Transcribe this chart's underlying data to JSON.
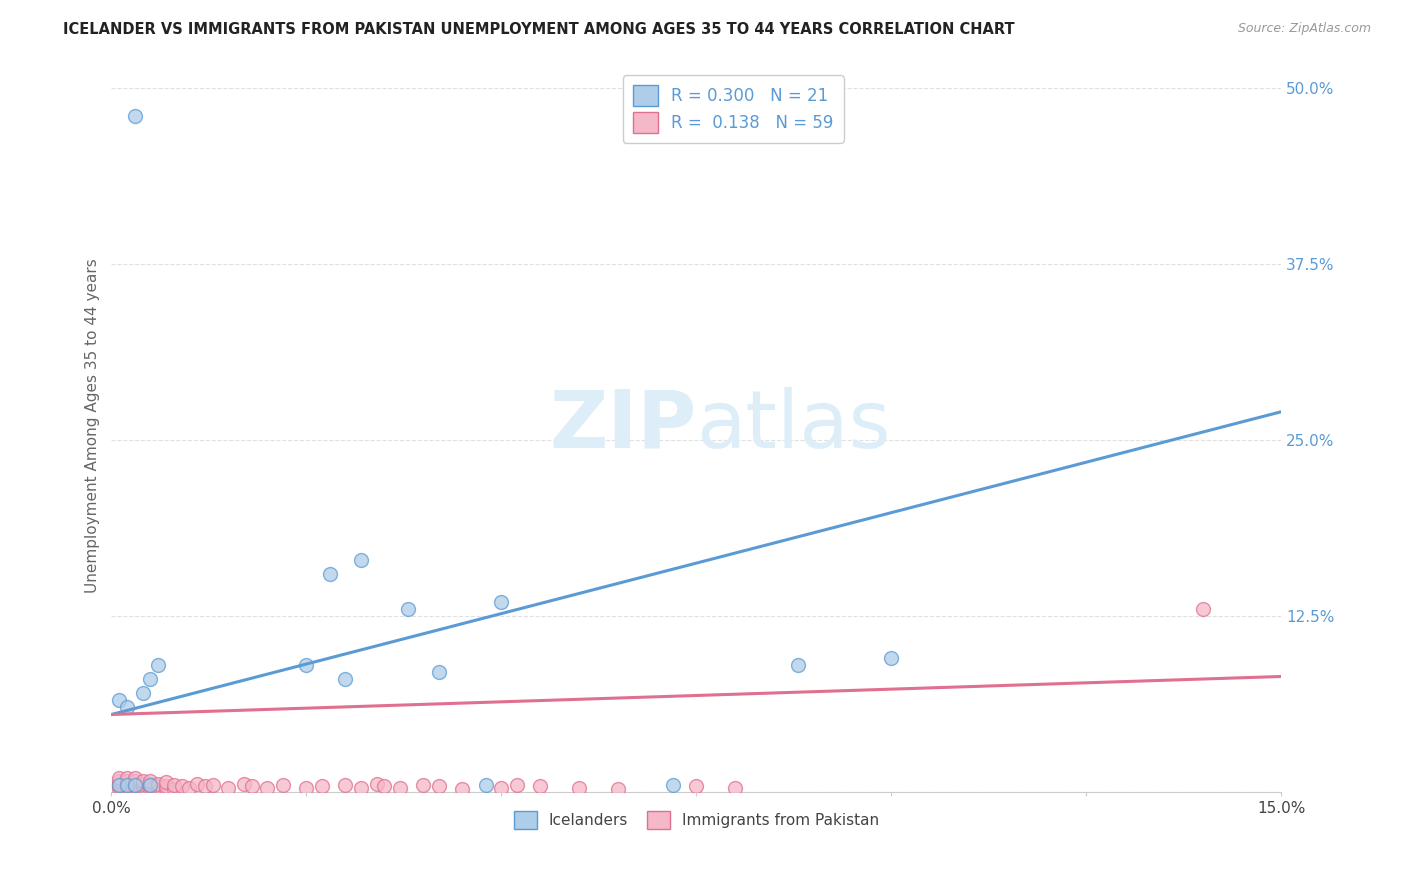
{
  "title": "ICELANDER VS IMMIGRANTS FROM PAKISTAN UNEMPLOYMENT AMONG AGES 35 TO 44 YEARS CORRELATION CHART",
  "source": "Source: ZipAtlas.com",
  "ylabel": "Unemployment Among Ages 35 to 44 years",
  "xlim": [
    0.0,
    0.15
  ],
  "ylim": [
    0.0,
    0.52
  ],
  "xticks": [
    0.0,
    0.025,
    0.05,
    0.075,
    0.1,
    0.125,
    0.15
  ],
  "xticklabels": [
    "0.0%",
    "",
    "",
    "",
    "",
    "",
    "15.0%"
  ],
  "ytick_positions": [
    0.0,
    0.125,
    0.25,
    0.375,
    0.5
  ],
  "ytick_labels": [
    "",
    "12.5%",
    "25.0%",
    "37.5%",
    "50.0%"
  ],
  "color_blue_fill": "#aecde8",
  "color_blue_edge": "#5b9bd5",
  "color_pink_fill": "#f4b8c8",
  "color_pink_edge": "#e07090",
  "color_blue_line": "#5b9bd5",
  "color_pink_line": "#e07090",
  "watermark_color": "#ddeef8",
  "background_color": "#ffffff",
  "grid_color": "#e0e0e0",
  "blue_line_x0": 0.0,
  "blue_line_y0": 0.055,
  "blue_line_x1": 0.15,
  "blue_line_y1": 0.27,
  "pink_line_x0": 0.0,
  "pink_line_y0": 0.055,
  "pink_line_x1": 0.15,
  "pink_line_y1": 0.082,
  "icelanders_x": [
    0.001,
    0.001,
    0.002,
    0.002,
    0.003,
    0.003,
    0.004,
    0.005,
    0.005,
    0.006,
    0.025,
    0.028,
    0.032,
    0.038,
    0.042,
    0.048,
    0.05,
    0.072,
    0.088,
    0.1,
    0.03
  ],
  "icelanders_y": [
    0.005,
    0.065,
    0.06,
    0.005,
    0.48,
    0.005,
    0.07,
    0.08,
    0.005,
    0.09,
    0.09,
    0.155,
    0.165,
    0.13,
    0.085,
    0.005,
    0.135,
    0.005,
    0.09,
    0.095,
    0.08
  ],
  "pakistan_x": [
    0.001,
    0.001,
    0.001,
    0.001,
    0.001,
    0.002,
    0.002,
    0.002,
    0.002,
    0.002,
    0.003,
    0.003,
    0.003,
    0.003,
    0.003,
    0.004,
    0.004,
    0.004,
    0.004,
    0.005,
    0.005,
    0.005,
    0.005,
    0.006,
    0.006,
    0.006,
    0.007,
    0.007,
    0.007,
    0.008,
    0.008,
    0.009,
    0.01,
    0.011,
    0.012,
    0.013,
    0.015,
    0.017,
    0.018,
    0.02,
    0.022,
    0.025,
    0.027,
    0.03,
    0.032,
    0.034,
    0.035,
    0.037,
    0.04,
    0.042,
    0.045,
    0.05,
    0.052,
    0.055,
    0.06,
    0.065,
    0.075,
    0.08,
    0.14
  ],
  "pakistan_y": [
    0.002,
    0.004,
    0.006,
    0.008,
    0.01,
    0.002,
    0.004,
    0.006,
    0.008,
    0.01,
    0.002,
    0.004,
    0.006,
    0.008,
    0.01,
    0.002,
    0.004,
    0.006,
    0.008,
    0.002,
    0.004,
    0.006,
    0.008,
    0.002,
    0.004,
    0.006,
    0.002,
    0.004,
    0.007,
    0.002,
    0.005,
    0.004,
    0.003,
    0.006,
    0.004,
    0.005,
    0.003,
    0.006,
    0.004,
    0.003,
    0.005,
    0.003,
    0.004,
    0.005,
    0.003,
    0.006,
    0.004,
    0.003,
    0.005,
    0.004,
    0.002,
    0.003,
    0.005,
    0.004,
    0.003,
    0.002,
    0.004,
    0.003,
    0.13
  ]
}
